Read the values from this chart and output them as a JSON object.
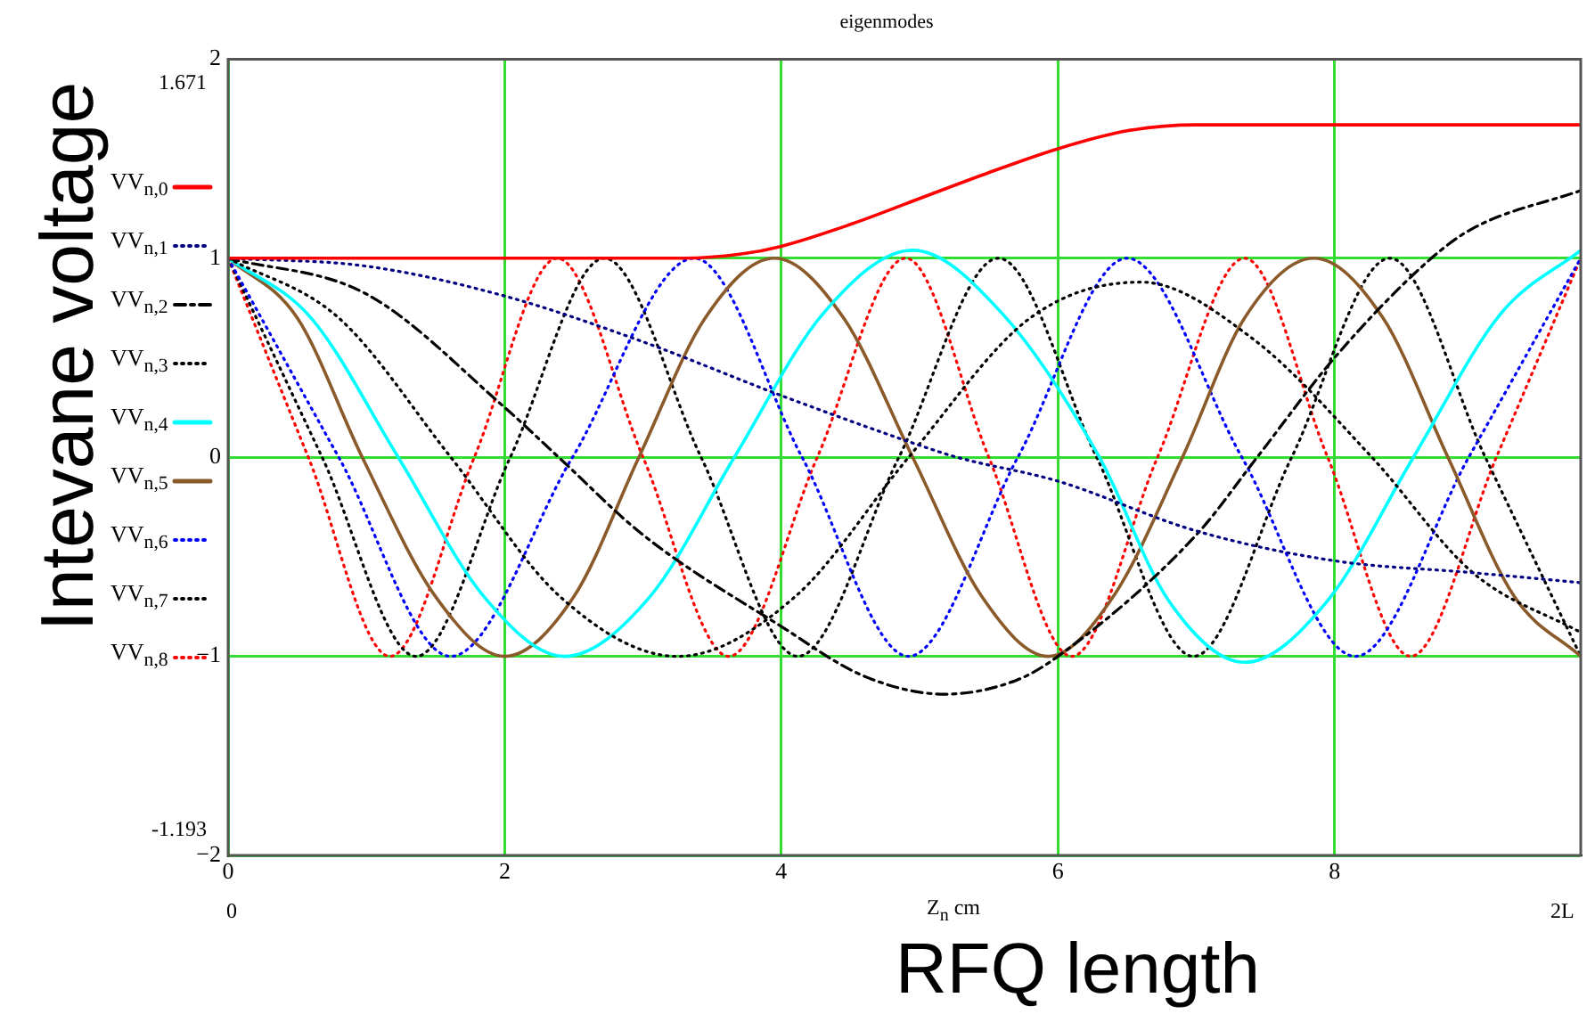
{
  "chart_data": {
    "type": "line",
    "title": "eigenmodes",
    "xlabel": "RFQ length",
    "ylabel": "Intevane voltage",
    "xlim": [
      0,
      9.78
    ],
    "xticks": [
      0,
      2,
      4,
      6,
      8
    ],
    "ylim": [
      -2,
      2
    ],
    "yticks": [
      -2,
      -1,
      0,
      1,
      2
    ],
    "grid": true,
    "legend": "left",
    "marker": "none",
    "annotations": [
      "1.671",
      "-1.193",
      "0",
      "Z$_{n}$ cm",
      "2L"
    ],
    "series": [
      {
        "name": "VV$_{n,0}$",
        "color": "#ff0000",
        "line_style": "solid",
        "x": [
          0,
          1,
          2,
          3,
          3.3,
          3.7,
          4,
          4.5,
          5,
          5.5,
          6,
          6.5,
          7,
          8,
          9,
          9.78
        ],
        "values": [
          1,
          1,
          1,
          1,
          1,
          1.02,
          1.06,
          1.17,
          1.3,
          1.43,
          1.55,
          1.64,
          1.67,
          1.67,
          1.67,
          1.67
        ]
      },
      {
        "name": "VV$_{n,1}$",
        "color": "#000080",
        "line_style": "dotted",
        "x": [
          0,
          1,
          2,
          3,
          4,
          5,
          5.27,
          6,
          7,
          8,
          9,
          9.78
        ],
        "values": [
          1,
          0.96,
          0.81,
          0.58,
          0.31,
          0.06,
          0,
          -0.12,
          -0.37,
          -0.52,
          -0.58,
          -0.63
        ]
      },
      {
        "name": "VV$_{n,2}$",
        "color": "#000000",
        "line_style": "dashed",
        "x": [
          0,
          1,
          2,
          2.39,
          3,
          4,
          4.6,
          5.18,
          5.7,
          6,
          7,
          7.44,
          8,
          8.7,
          9,
          9.78
        ],
        "values": [
          1,
          0.82,
          0.25,
          0,
          -0.39,
          -0.85,
          -1.1,
          -1.19,
          -1.12,
          -1,
          -0.39,
          0,
          0.5,
          1,
          1.15,
          1.34
        ]
      },
      {
        "name": "VV$_{n,3}$",
        "color": "#000000",
        "line_style": "dotted",
        "x": [
          0,
          0.8,
          1.61,
          2.4,
          3.25,
          4.1,
          4.92,
          5.8,
          6.6,
          7.4,
          8.27,
          9,
          9.78
        ],
        "values": [
          1,
          0.7,
          0,
          -0.7,
          -1,
          -0.7,
          0,
          0.7,
          0.88,
          0.6,
          0,
          -0.58,
          -0.88
        ]
      },
      {
        "name": "VV$_{n,4}$",
        "color": "#00ffff",
        "line_style": "solid",
        "x": [
          0,
          0.6,
          1.23,
          1.85,
          2.43,
          3.05,
          3.66,
          4.3,
          4.95,
          5.6,
          6.3,
          6.8,
          7.35,
          7.95,
          8.57,
          9.2,
          9.78
        ],
        "values": [
          1,
          0.7,
          0,
          -0.7,
          -1,
          -0.7,
          0,
          0.72,
          1.04,
          0.72,
          0,
          -0.72,
          -1.03,
          -0.72,
          0,
          0.72,
          1.04
        ]
      },
      {
        "name": "VV$_{n,5}$",
        "color": "#8b5a2b",
        "line_style": "solid",
        "x": [
          0,
          0.5,
          0.97,
          1.5,
          2,
          2.5,
          2.97,
          3.45,
          3.95,
          4.45,
          4.95,
          5.45,
          5.93,
          6.4,
          6.9,
          7.35,
          7.85,
          8.35,
          8.82,
          9.3,
          9.78
        ],
        "values": [
          1,
          0.7,
          0,
          -0.7,
          -1,
          -0.7,
          0,
          0.7,
          1,
          0.7,
          0,
          -0.7,
          -1,
          -0.7,
          0,
          0.7,
          1,
          0.7,
          0,
          -0.7,
          -1
        ]
      },
      {
        "name": "VV$_{n,6}$",
        "color": "#0000ff",
        "line_style": "dotted",
        "x": [
          0,
          0.8,
          1.61,
          2.49,
          3.37,
          4.15,
          4.92,
          5.71,
          6.5,
          7.33,
          8.15,
          8.97,
          9.78
        ],
        "values": [
          1,
          0,
          -1,
          0,
          1,
          0,
          -1,
          0,
          1,
          0,
          -1,
          0,
          1
        ]
      },
      {
        "name": "VV$_{n,7}$",
        "color": "#000000",
        "line_style": "dotted",
        "x": [
          0,
          0.68,
          1.36,
          2.04,
          2.72,
          3.42,
          4.12,
          4.85,
          5.57,
          6.28,
          6.98,
          7.69,
          8.4,
          9.09,
          9.78
        ],
        "values": [
          1,
          0,
          -1,
          0,
          1,
          0,
          -1,
          0,
          1,
          0,
          -1,
          0,
          1,
          0,
          -1
        ]
      },
      {
        "name": "VV$_{n,8}$",
        "color": "#ff0000",
        "line_style": "dotted",
        "x": [
          0,
          0.58,
          1.17,
          1.78,
          2.38,
          3.0,
          3.62,
          4.26,
          4.9,
          5.5,
          6.1,
          6.72,
          7.35,
          7.95,
          8.55,
          9.17,
          9.78
        ],
        "values": [
          1,
          0,
          -1,
          0,
          1,
          0,
          -1,
          0,
          1,
          0,
          -1,
          0,
          1,
          0,
          -1,
          0,
          1
        ]
      }
    ]
  }
}
